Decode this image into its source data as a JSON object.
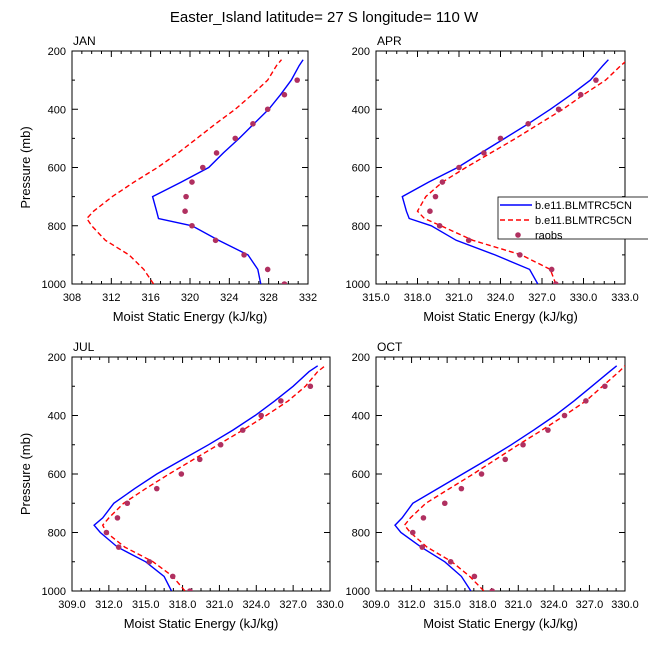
{
  "figure": {
    "title": "Easter_Island  latitude= 27 S longitude= 110 W"
  },
  "legend": {
    "entries": [
      {
        "label": "b.e11.BLMTRC5CN",
        "style": "solid",
        "color": "#0000ff"
      },
      {
        "label": "b.e11.BLMTRC5CN",
        "style": "dashed",
        "color": "#ff0000"
      },
      {
        "label": "raobs",
        "style": "marker",
        "color": "#b03060"
      }
    ]
  },
  "chart_data": [
    {
      "type": "line",
      "panel": "JAN",
      "xlabel": "Moist Static Energy (kJ/kg)",
      "ylabel": "Pressure (mb)",
      "xlim": [
        308,
        332
      ],
      "ylim": [
        1000,
        200
      ],
      "xticks": [
        "308",
        "312",
        "316",
        "320",
        "324",
        "328",
        "332"
      ],
      "yticks": [
        "200",
        "400",
        "600",
        "800",
        "1000"
      ],
      "pressure": [
        1000,
        950,
        900,
        850,
        800,
        775,
        750,
        700,
        650,
        600,
        550,
        500,
        450,
        400,
        350,
        300,
        250,
        230
      ],
      "series": [
        {
          "name": "b.e11.BLMTRC5CN",
          "style": "solid",
          "values": [
            327.2,
            326.9,
            325.9,
            322.9,
            320.2,
            316.8,
            316.6,
            316.2,
            319.1,
            321.9,
            323.4,
            325.0,
            326.5,
            328.0,
            329.2,
            330.3,
            331.1,
            331.5
          ]
        },
        {
          "name": "b.e11.BLMTRC5CN",
          "style": "dashed",
          "values": [
            316.3,
            315.3,
            313.8,
            311.4,
            310.0,
            309.5,
            310.2,
            312.1,
            314.3,
            316.7,
            318.8,
            320.7,
            322.6,
            324.6,
            326.3,
            327.9,
            328.8,
            329.3
          ]
        },
        {
          "name": "raobs",
          "style": "marker",
          "pressure": [
            1000,
            950,
            900,
            850,
            800,
            750,
            700,
            650,
            600,
            550,
            500,
            450,
            400,
            350,
            300
          ],
          "values": [
            329.6,
            327.9,
            325.5,
            322.6,
            320.2,
            319.5,
            319.6,
            320.2,
            321.3,
            322.7,
            324.6,
            326.4,
            327.9,
            329.6,
            330.9
          ]
        }
      ]
    },
    {
      "type": "line",
      "panel": "APR",
      "xlabel": "Moist Static Energy (kJ/kg)",
      "ylabel": "",
      "xlim": [
        315,
        333
      ],
      "ylim": [
        1000,
        200
      ],
      "xticks": [
        "315.0",
        "318.0",
        "321.0",
        "324.0",
        "327.0",
        "330.0",
        "333.0"
      ],
      "yticks": [
        "200",
        "400",
        "600",
        "800",
        "1000"
      ],
      "pressure": [
        1000,
        950,
        900,
        850,
        800,
        775,
        750,
        700,
        650,
        600,
        550,
        500,
        450,
        400,
        350,
        300,
        250,
        230
      ],
      "series": [
        {
          "name": "b.e11.BLMTRC5CN",
          "style": "solid",
          "values": [
            326.7,
            326.1,
            323.6,
            320.8,
            319.0,
            317.4,
            317.2,
            316.9,
            318.8,
            320.9,
            322.6,
            324.3,
            326.0,
            327.6,
            329.1,
            330.5,
            331.4,
            331.8
          ]
        },
        {
          "name": "b.e11.BLMTRC5CN",
          "style": "dashed",
          "values": [
            328.0,
            327.6,
            325.5,
            322.0,
            319.7,
            318.5,
            318.0,
            318.6,
            319.8,
            321.5,
            323.3,
            325.1,
            326.8,
            328.5,
            330.0,
            331.6,
            332.7,
            333.2
          ]
        },
        {
          "name": "raobs",
          "style": "marker",
          "pressure": [
            1000,
            950,
            900,
            850,
            800,
            750,
            700,
            650,
            600,
            550,
            500,
            450,
            400,
            350,
            300
          ],
          "values": [
            328.0,
            327.7,
            325.4,
            321.7,
            319.6,
            318.9,
            319.3,
            319.8,
            321.0,
            322.8,
            324.0,
            326.0,
            328.2,
            329.8,
            330.9
          ]
        }
      ]
    },
    {
      "type": "line",
      "panel": "JUL",
      "xlabel": "Moist Static Energy (kJ/kg)",
      "ylabel": "Pressure (mb)",
      "xlim": [
        309,
        330
      ],
      "ylim": [
        1000,
        200
      ],
      "xticks": [
        "309.0",
        "312.0",
        "315.0",
        "318.0",
        "321.0",
        "324.0",
        "327.0",
        "330.0"
      ],
      "yticks": [
        "200",
        "400",
        "600",
        "800",
        "1000"
      ],
      "pressure": [
        1000,
        950,
        900,
        850,
        800,
        775,
        750,
        700,
        650,
        600,
        550,
        500,
        450,
        400,
        350,
        300,
        250,
        230
      ],
      "series": [
        {
          "name": "b.e11.BLMTRC5CN",
          "style": "solid",
          "values": [
            317.1,
            316.5,
            315.0,
            312.7,
            311.3,
            310.8,
            311.5,
            312.4,
            314.1,
            315.9,
            318.0,
            320.1,
            322.1,
            323.9,
            325.5,
            327.0,
            328.3,
            329.0
          ]
        },
        {
          "name": "b.e11.BLMTRC5CN",
          "style": "dashed",
          "values": [
            318.2,
            317.2,
            315.6,
            313.3,
            311.8,
            311.5,
            312.0,
            313.2,
            315.0,
            316.9,
            318.9,
            320.9,
            322.9,
            324.8,
            326.6,
            328.0,
            329.0,
            329.6
          ]
        },
        {
          "name": "raobs",
          "style": "marker",
          "pressure": [
            1000,
            950,
            900,
            850,
            800,
            750,
            700,
            650,
            600,
            550,
            500,
            450,
            400,
            350,
            300
          ],
          "values": [
            318.6,
            317.2,
            315.3,
            312.8,
            311.8,
            312.7,
            313.5,
            315.9,
            317.9,
            319.4,
            321.1,
            322.9,
            324.4,
            326.0,
            328.4
          ]
        }
      ]
    },
    {
      "type": "line",
      "panel": "OCT",
      "xlabel": "Moist Static Energy (kJ/kg)",
      "ylabel": "",
      "xlim": [
        309,
        330
      ],
      "ylim": [
        1000,
        200
      ],
      "xticks": [
        "309.0",
        "312.0",
        "315.0",
        "318.0",
        "321.0",
        "324.0",
        "327.0",
        "330.0"
      ],
      "yticks": [
        "200",
        "400",
        "600",
        "800",
        "1000"
      ],
      "pressure": [
        1000,
        950,
        900,
        850,
        800,
        775,
        750,
        700,
        650,
        600,
        550,
        500,
        450,
        400,
        350,
        300,
        250,
        230
      ],
      "series": [
        {
          "name": "b.e11.BLMTRC5CN",
          "style": "solid",
          "values": [
            317.0,
            316.2,
            314.8,
            312.8,
            311.1,
            310.6,
            311.2,
            312.1,
            314.2,
            316.3,
            318.4,
            320.4,
            322.3,
            324.1,
            325.7,
            327.2,
            328.7,
            329.3
          ]
        },
        {
          "name": "b.e11.BLMTRC5CN",
          "style": "dashed",
          "values": [
            318.1,
            316.9,
            315.4,
            313.3,
            311.9,
            311.4,
            311.9,
            313.2,
            315.2,
            317.2,
            319.1,
            321.0,
            323.0,
            324.9,
            326.7,
            328.1,
            329.5,
            330.0
          ]
        },
        {
          "name": "raobs",
          "style": "marker",
          "pressure": [
            1000,
            950,
            900,
            850,
            800,
            750,
            700,
            650,
            600,
            550,
            500,
            450,
            400,
            350,
            300
          ],
          "values": [
            318.8,
            317.3,
            315.3,
            312.9,
            312.1,
            313.0,
            314.8,
            316.2,
            317.9,
            319.9,
            321.4,
            323.5,
            324.9,
            326.7,
            328.3
          ]
        }
      ]
    }
  ]
}
